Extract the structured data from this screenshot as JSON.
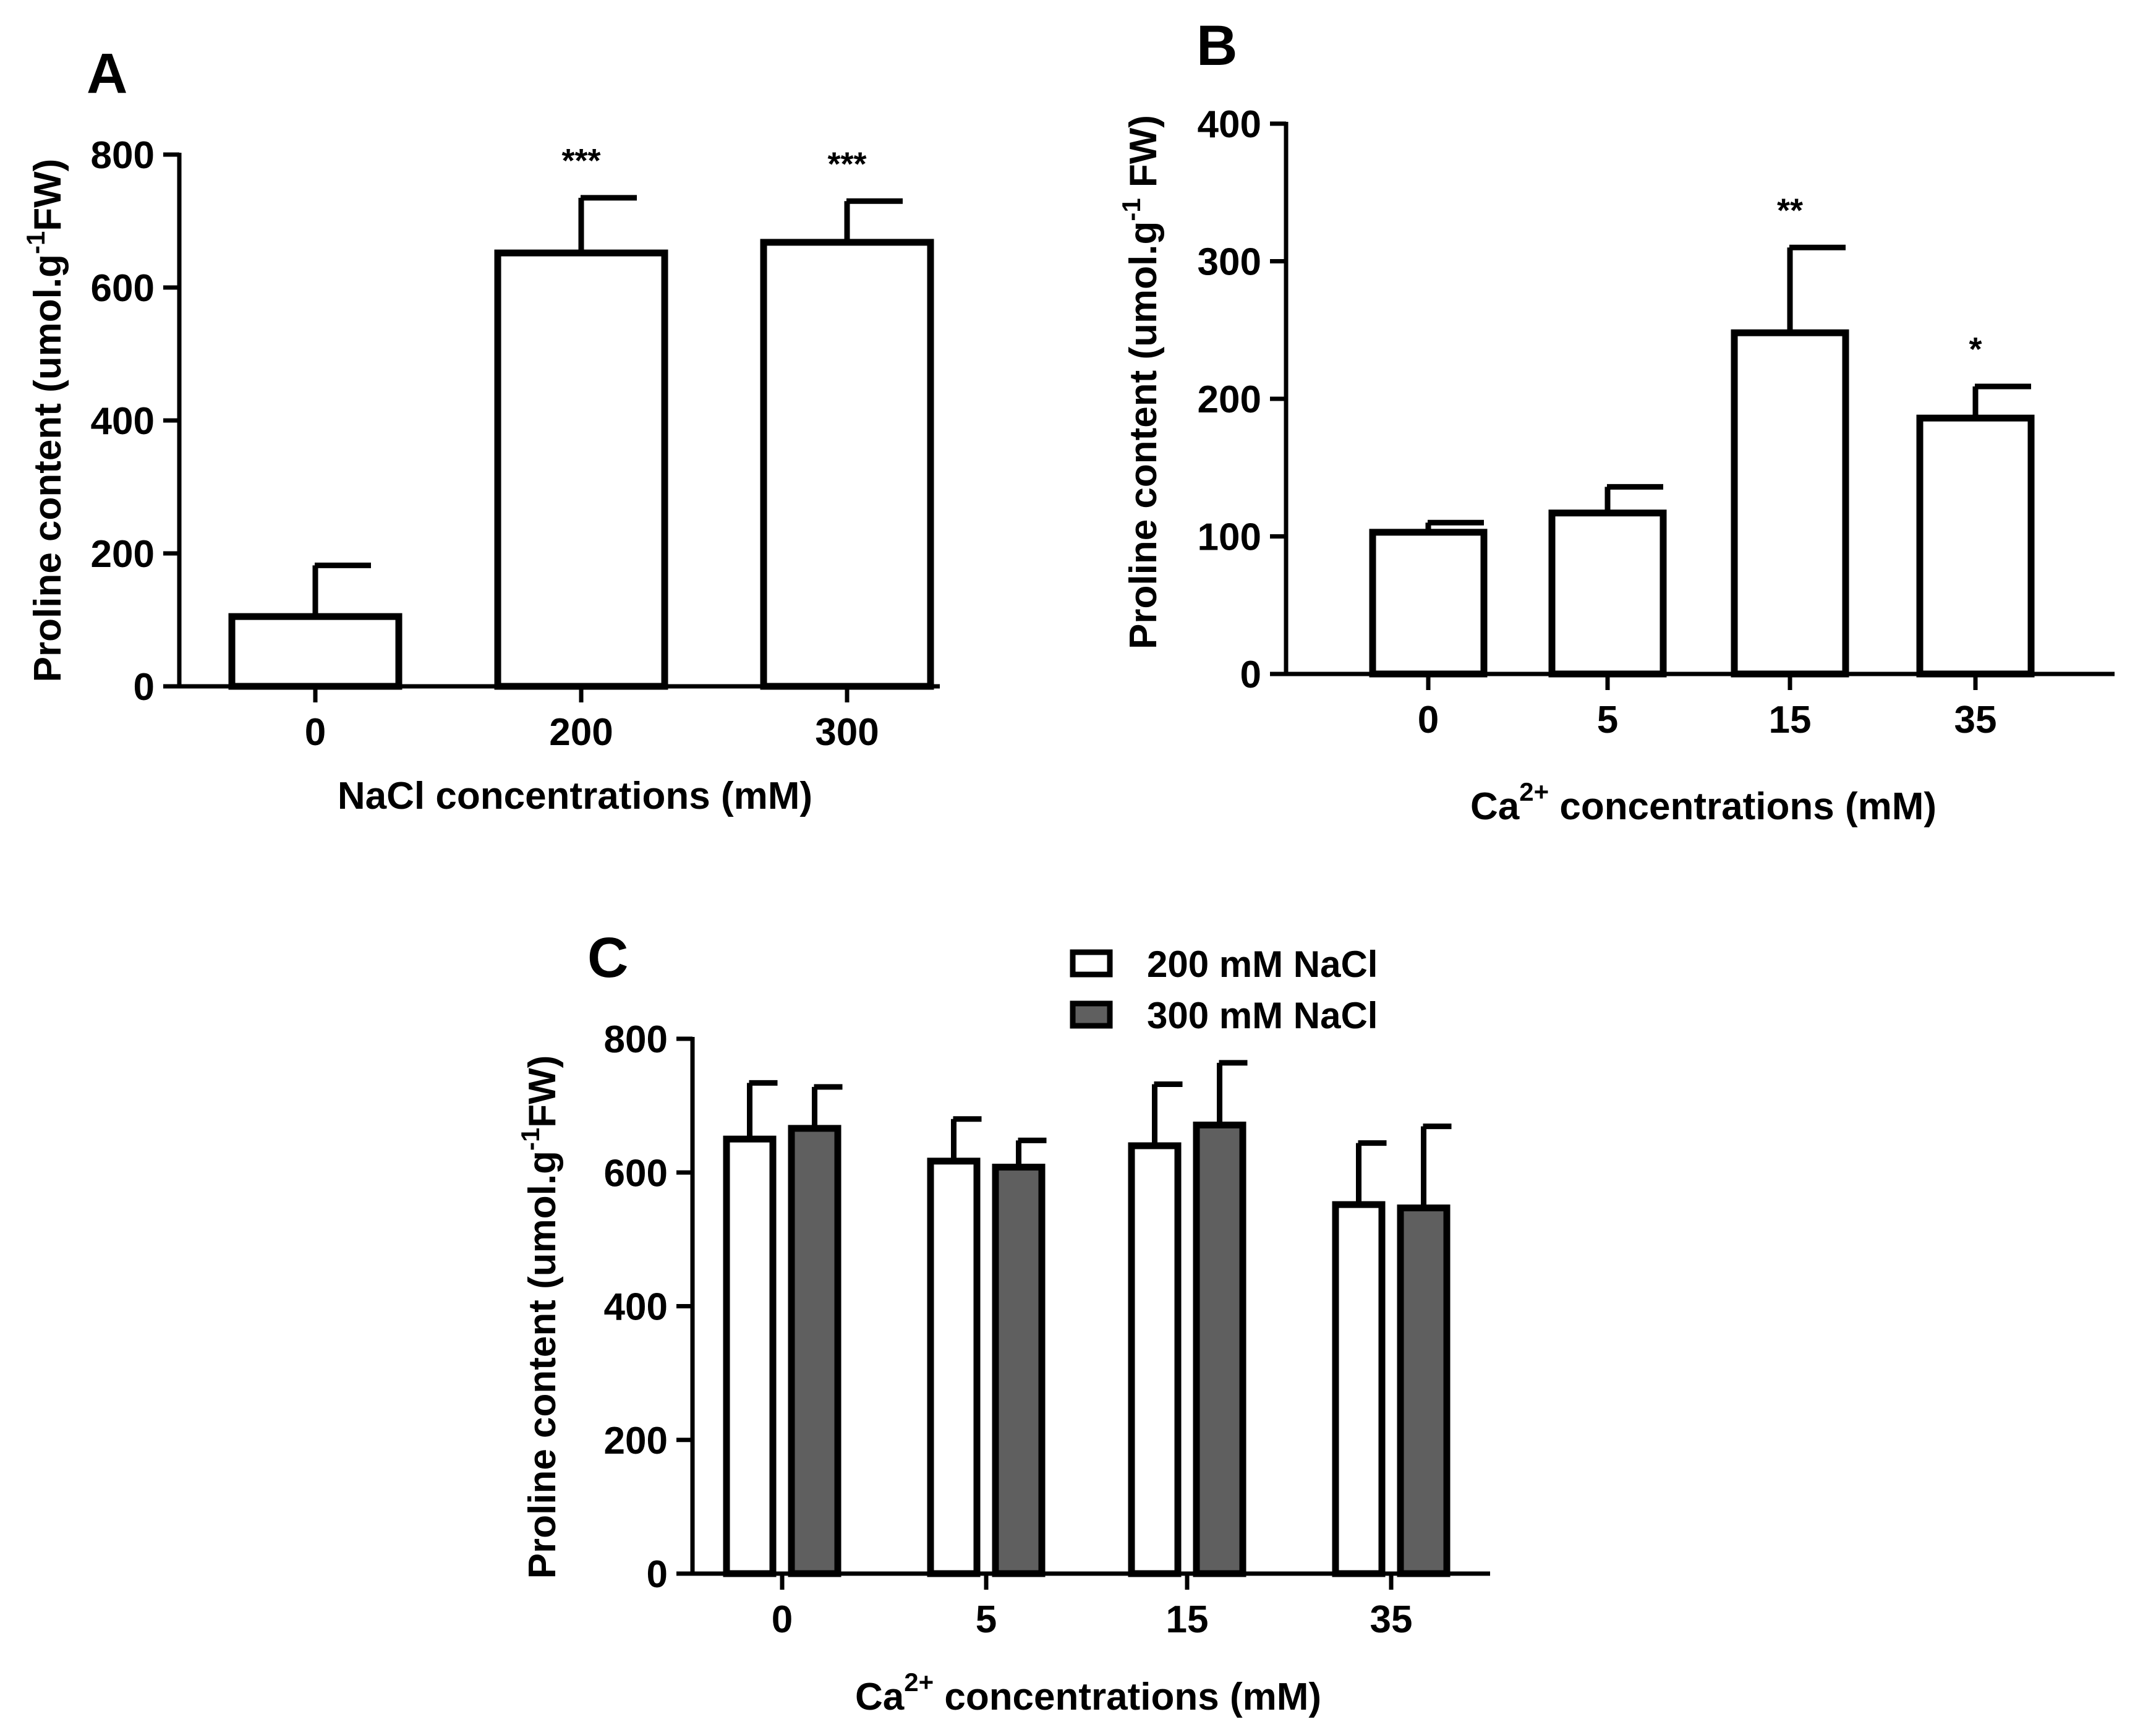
{
  "chart_data": [
    {
      "panel": "A",
      "type": "bar",
      "categories": [
        "0",
        "200",
        "300"
      ],
      "series": [
        {
          "name": "",
          "values": [
            105,
            652,
            668
          ],
          "errors": [
            77,
            83,
            62
          ],
          "fill": "#ffffff",
          "significance": [
            "",
            "***",
            "***"
          ]
        }
      ],
      "xlabel": "NaCl concentrations (mM)",
      "ylabel": {
        "main": "Proline content (umol.g",
        "sup": "-1",
        "tail": "FW)"
      },
      "ylim": [
        0,
        800
      ],
      "yticks": [
        "0",
        "200",
        "400",
        "600",
        "800"
      ],
      "legend": []
    },
    {
      "panel": "B",
      "type": "bar",
      "categories": [
        "0",
        "5",
        "15",
        "35"
      ],
      "series": [
        {
          "name": "",
          "values": [
            103,
            117,
            248,
            186
          ],
          "errors": [
            7,
            19,
            62,
            23
          ],
          "fill": "#ffffff",
          "significance": [
            "",
            "",
            "**",
            "*"
          ]
        }
      ],
      "xlabel": {
        "main": "Ca",
        "sup": "2+",
        "tail": " concentrations (mM)"
      },
      "ylabel": {
        "main": "Proline content (umol.g",
        "sup": "-1",
        "tail": " FW)"
      },
      "ylim": [
        0,
        400
      ],
      "yticks": [
        "0",
        "100",
        "200",
        "300",
        "400"
      ],
      "legend": []
    },
    {
      "panel": "C",
      "type": "bar",
      "categories": [
        "0",
        "5",
        "15",
        "35"
      ],
      "series": [
        {
          "name": "200 mM NaCl",
          "values": [
            650,
            617,
            640,
            552
          ],
          "errors": [
            84,
            63,
            92,
            92
          ],
          "fill": "#ffffff"
        },
        {
          "name": "300 mM NaCl",
          "values": [
            666,
            608,
            671,
            547
          ],
          "errors": [
            62,
            40,
            93,
            122
          ],
          "fill": "#5f5f5f"
        }
      ],
      "xlabel": {
        "main": "Ca",
        "sup": "2+",
        "tail": " concentrations (mM)"
      },
      "ylabel": {
        "main": "Proline content (umol.g",
        "sup": "-1",
        "tail": "FW)"
      },
      "ylim": [
        0,
        800
      ],
      "yticks": [
        "0",
        "200",
        "400",
        "600",
        "800"
      ],
      "legend": [
        "200 mM NaCl",
        "300 mM NaCl"
      ]
    }
  ]
}
